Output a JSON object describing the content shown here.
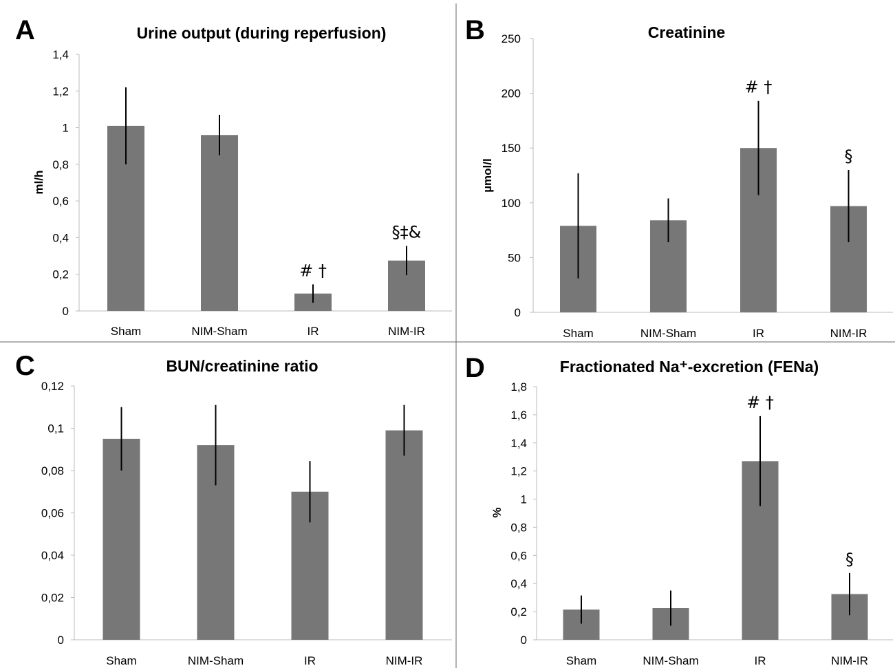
{
  "figure": {
    "bar_color": "#777777",
    "error_color": "#000000",
    "divider_color": "#666666"
  },
  "chart_data": [
    {
      "panel": "A",
      "type": "bar",
      "title": "Urine output (during reperfusion)",
      "ylabel": "ml/h",
      "categories": [
        "Sham",
        "NIM-Sham",
        "IR",
        "NIM-IR"
      ],
      "values": [
        1.01,
        0.96,
        0.095,
        0.275
      ],
      "errors": [
        0.21,
        0.11,
        0.05,
        0.08
      ],
      "annotations": [
        "",
        "",
        "# †",
        "§‡&"
      ],
      "ylim": [
        0,
        1.4
      ],
      "yticks": [
        0,
        0.2,
        0.4,
        0.6,
        0.8,
        1,
        1.2,
        1.4
      ],
      "ytick_labels": [
        "0",
        "0,2",
        "0,4",
        "0,6",
        "0,8",
        "1",
        "1,2",
        "1,4"
      ],
      "grid": false
    },
    {
      "panel": "B",
      "type": "bar",
      "title": "Creatinine",
      "ylabel": "µmol/l",
      "categories": [
        "Sham",
        "NIM-Sham",
        "IR",
        "NIM-IR"
      ],
      "values": [
        79,
        84,
        150,
        97
      ],
      "errors": [
        48,
        20,
        43,
        33
      ],
      "annotations": [
        "",
        "",
        "# †",
        "§"
      ],
      "ylim": [
        0,
        250
      ],
      "yticks": [
        0,
        50,
        100,
        150,
        200,
        250
      ],
      "ytick_labels": [
        "0",
        "50",
        "100",
        "150",
        "200",
        "250"
      ],
      "grid": false
    },
    {
      "panel": "C",
      "type": "bar",
      "title": "BUN/creatinine ratio",
      "ylabel": "",
      "categories": [
        "Sham",
        "NIM-Sham",
        "IR",
        "NIM-IR"
      ],
      "values": [
        0.095,
        0.092,
        0.07,
        0.099
      ],
      "errors": [
        0.015,
        0.019,
        0.0145,
        0.012
      ],
      "annotations": [
        "",
        "",
        "",
        ""
      ],
      "ylim": [
        0,
        0.12
      ],
      "yticks": [
        0,
        0.02,
        0.04,
        0.06,
        0.08,
        0.1,
        0.12
      ],
      "ytick_labels": [
        "0",
        "0,02",
        "0,04",
        "0,06",
        "0,08",
        "0,1",
        "0,12"
      ],
      "grid": false
    },
    {
      "panel": "D",
      "type": "bar",
      "title": "Fractionated Na⁺-excretion (FENa)",
      "ylabel": "%",
      "categories": [
        "Sham",
        "NIM-Sham",
        "IR",
        "NIM-IR"
      ],
      "values": [
        0.215,
        0.225,
        1.27,
        0.325
      ],
      "errors": [
        0.1,
        0.125,
        0.32,
        0.15
      ],
      "annotations": [
        "",
        "",
        "# †",
        "§"
      ],
      "ylim": [
        0,
        1.8
      ],
      "yticks": [
        0,
        0.2,
        0.4,
        0.6,
        0.8,
        1,
        1.2,
        1.4,
        1.6,
        1.8
      ],
      "ytick_labels": [
        "0",
        "0,2",
        "0,4",
        "0,6",
        "0,8",
        "1",
        "1,2",
        "1,4",
        "1,6",
        "1,8"
      ],
      "grid": false
    }
  ]
}
